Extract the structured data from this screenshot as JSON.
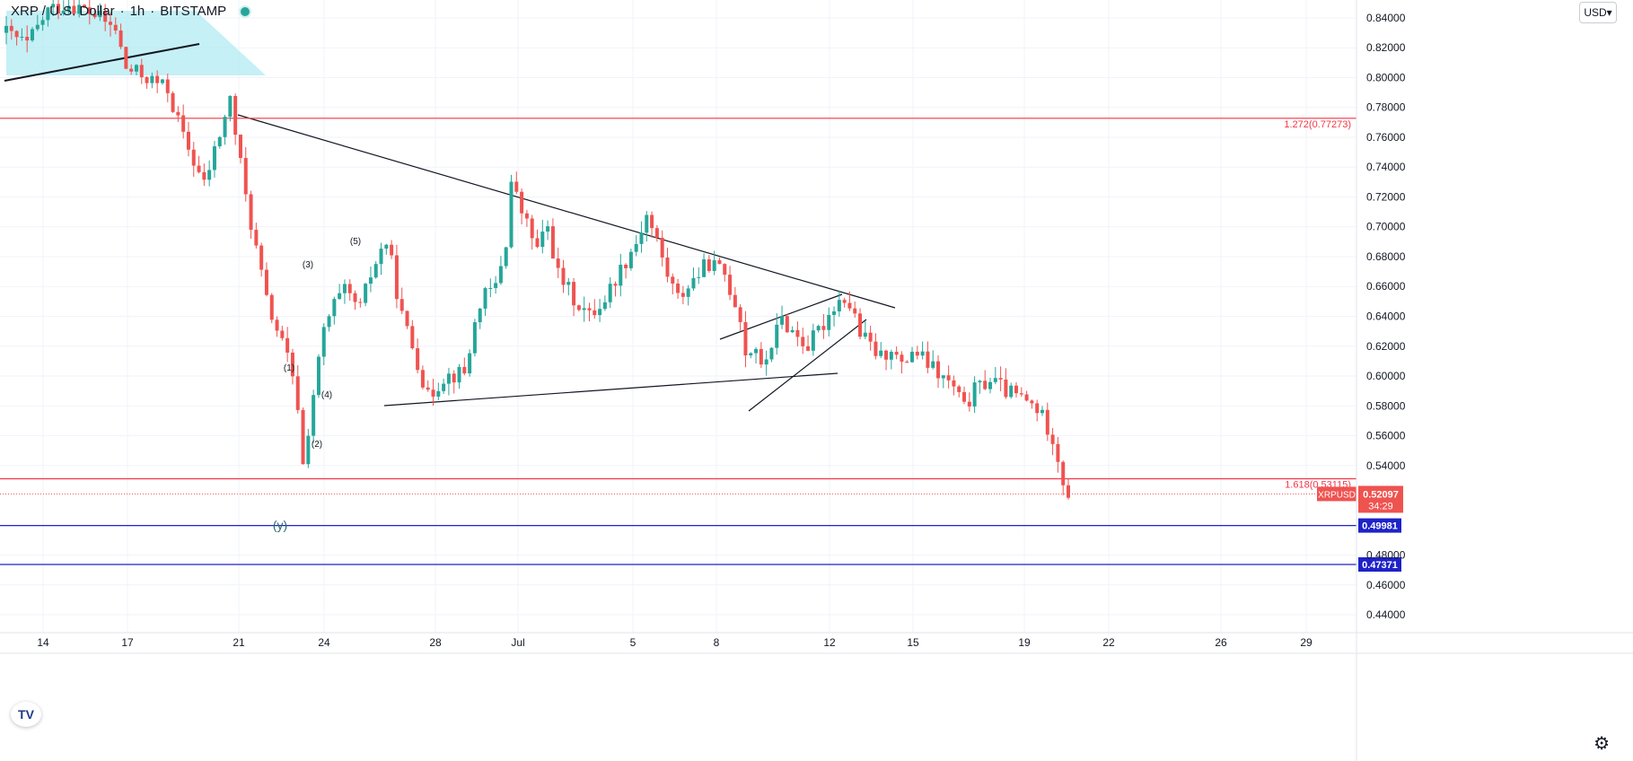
{
  "header": {
    "symbol": "XRP / U.S. Dollar",
    "interval": "1h",
    "exchange": "BITSTAMP"
  },
  "unit_selector": "USD",
  "logo_text": "TV",
  "colors": {
    "up": "#26a69a",
    "down": "#ef5350",
    "accent_red": "#f23645",
    "accent_blue": "#1e22c8",
    "triangle_fill": "#b2ebf2"
  },
  "chart_data": {
    "type": "candlestick",
    "title": "",
    "x_tick_labels": [
      "14",
      "17",
      "21",
      "24",
      "28",
      "Jul",
      "5",
      "8",
      "12",
      "15",
      "19",
      "22",
      "26",
      "29"
    ],
    "y_ticks": [
      "0.84000",
      "0.82000",
      "0.80000",
      "0.78000",
      "0.76000",
      "0.74000",
      "0.72000",
      "0.70000",
      "0.68000",
      "0.66000",
      "0.64000",
      "0.62000",
      "0.60000",
      "0.58000",
      "0.56000",
      "0.54000",
      "0.48000",
      "0.46000",
      "0.44000"
    ],
    "ylim": [
      0.428,
      0.852
    ],
    "last_price": {
      "label": "XRPUSD",
      "value": "0.52097",
      "countdown": "34:29"
    },
    "horizontal_levels": [
      {
        "label": "1.272(0.77273)",
        "value": 0.77273,
        "color": "#f23645"
      },
      {
        "label": "1.618(0.53115)",
        "value": 0.53115,
        "color": "#f23645"
      },
      {
        "label": "0.49981",
        "value": 0.49981,
        "color": "#1e22c8"
      },
      {
        "label": "0.47371",
        "value": 0.47371,
        "color": "#1e22c8"
      }
    ],
    "wave_labels": [
      "(1)",
      "(2)",
      "(3)",
      "(4)",
      "(5)",
      "(y)"
    ],
    "price_path": [
      [
        0,
        0.83
      ],
      [
        4,
        0.822
      ],
      [
        8,
        0.845
      ],
      [
        12,
        0.85
      ],
      [
        17,
        0.842
      ],
      [
        21,
        0.832
      ],
      [
        23,
        0.806
      ],
      [
        27,
        0.8
      ],
      [
        31,
        0.792
      ],
      [
        34,
        0.76
      ],
      [
        38,
        0.728
      ],
      [
        41,
        0.762
      ],
      [
        43,
        0.785
      ],
      [
        46,
        0.72
      ],
      [
        50,
        0.65
      ],
      [
        54,
        0.612
      ],
      [
        56,
        0.58
      ],
      [
        57,
        0.54
      ],
      [
        59,
        0.588
      ],
      [
        61,
        0.63
      ],
      [
        63,
        0.648
      ],
      [
        65,
        0.656
      ],
      [
        68,
        0.645
      ],
      [
        70,
        0.668
      ],
      [
        72,
        0.684
      ],
      [
        73,
        0.69
      ],
      [
        74,
        0.675
      ],
      [
        76,
        0.64
      ],
      [
        79,
        0.61
      ],
      [
        81,
        0.585
      ],
      [
        84,
        0.6
      ],
      [
        88,
        0.602
      ],
      [
        91,
        0.65
      ],
      [
        94,
        0.66
      ],
      [
        96,
        0.69
      ],
      [
        97,
        0.73
      ],
      [
        99,
        0.71
      ],
      [
        102,
        0.685
      ],
      [
        104,
        0.7
      ],
      [
        106,
        0.668
      ],
      [
        109,
        0.652
      ],
      [
        112,
        0.64
      ],
      [
        115,
        0.652
      ],
      [
        118,
        0.672
      ],
      [
        121,
        0.69
      ],
      [
        123,
        0.708
      ],
      [
        125,
        0.69
      ],
      [
        127,
        0.668
      ],
      [
        129,
        0.652
      ],
      [
        132,
        0.665
      ],
      [
        135,
        0.676
      ],
      [
        138,
        0.668
      ],
      [
        141,
        0.64
      ],
      [
        142,
        0.615
      ],
      [
        144,
        0.62
      ],
      [
        145,
        0.603
      ],
      [
        147,
        0.622
      ],
      [
        149,
        0.638
      ],
      [
        151,
        0.63
      ],
      [
        154,
        0.62
      ],
      [
        157,
        0.635
      ],
      [
        159,
        0.648
      ],
      [
        161,
        0.653
      ],
      [
        163,
        0.64
      ],
      [
        164,
        0.628
      ],
      [
        166,
        0.62
      ],
      [
        168,
        0.612
      ],
      [
        170,
        0.62
      ],
      [
        172,
        0.605
      ],
      [
        174,
        0.618
      ],
      [
        177,
        0.608
      ],
      [
        180,
        0.598
      ],
      [
        182,
        0.592
      ],
      [
        184,
        0.578
      ],
      [
        186,
        0.59
      ],
      [
        189,
        0.598
      ],
      [
        192,
        0.59
      ],
      [
        195,
        0.585
      ],
      [
        198,
        0.578
      ],
      [
        201,
        0.56
      ],
      [
        203,
        0.53
      ],
      [
        204,
        0.521
      ]
    ]
  }
}
